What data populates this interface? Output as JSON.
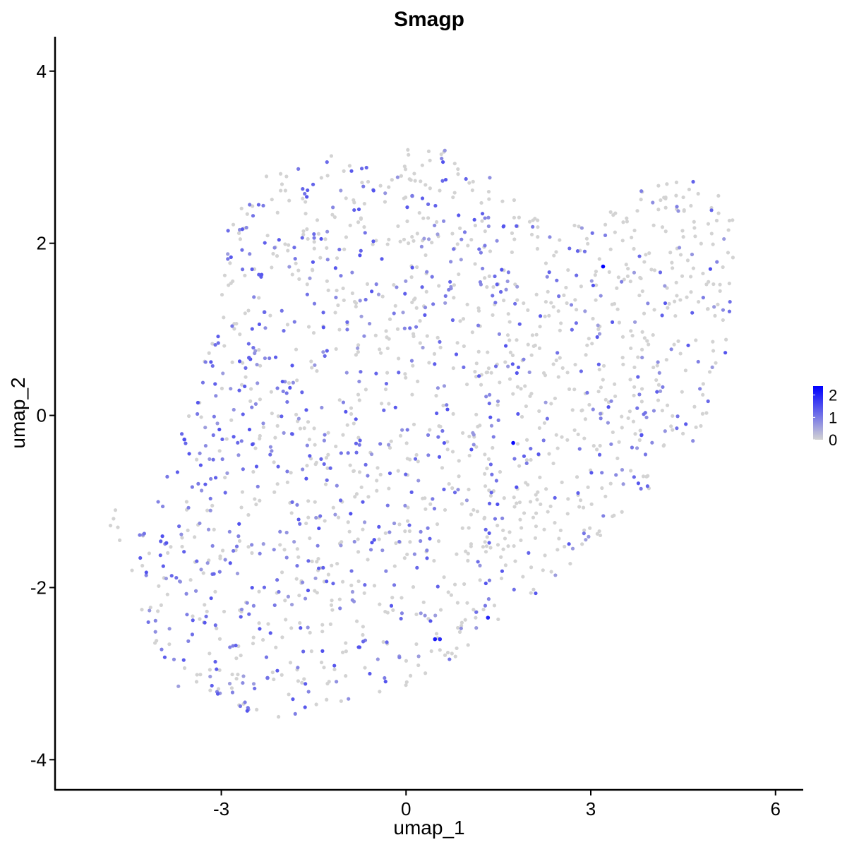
{
  "chart_data": {
    "type": "scatter",
    "title": "Smagp",
    "xlabel": "umap_1",
    "ylabel": "umap_2",
    "xlim": [
      -5.7,
      6.45
    ],
    "ylim": [
      -4.35,
      4.4
    ],
    "xticks": [
      -3,
      0,
      3,
      6
    ],
    "xtick_labels": [
      "-3",
      "0",
      "3",
      "6"
    ],
    "yticks": [
      4,
      2,
      0,
      -2,
      -4
    ],
    "ytick_labels": [
      "4",
      "2",
      "0",
      "-2",
      "-4"
    ],
    "grid": false,
    "legend": {
      "placement": "right",
      "type": "colorbar",
      "range": [
        0,
        2.4
      ],
      "ticks": [
        2,
        1,
        0
      ],
      "tick_labels": [
        "2",
        "1",
        "0"
      ],
      "low_color": "#D3D3D3",
      "high_color": "#0000FF"
    },
    "highlight_points": [
      {
        "x": 3.2,
        "y": 1.73,
        "value": 2.4
      },
      {
        "x": 1.74,
        "y": -0.32,
        "value": 2.3
      },
      {
        "x": 1.33,
        "y": -2.35,
        "value": 2.0
      },
      {
        "x": 0.47,
        "y": -2.6,
        "value": 2.1
      },
      {
        "x": 0.55,
        "y": -2.6,
        "value": 1.9
      },
      {
        "x": -3.6,
        "y": -0.28,
        "value": 1.5
      },
      {
        "x": -2.55,
        "y": 0.67,
        "value": 1.3
      },
      {
        "x": -2.3,
        "y": 1.2,
        "value": 1.2
      },
      {
        "x": -2.25,
        "y": -3.05,
        "value": 1.1
      },
      {
        "x": 0.1,
        "y": 2.55,
        "value": 1.0
      }
    ],
    "point_generation": {
      "n_points": 1700,
      "seed": 7,
      "region_polygon": [
        [
          -2.1,
          2.95
        ],
        [
          -1.0,
          3.05
        ],
        [
          0.0,
          3.1
        ],
        [
          0.5,
          3.15
        ],
        [
          1.2,
          2.95
        ],
        [
          2.4,
          2.1
        ],
        [
          3.5,
          2.45
        ],
        [
          4.5,
          3.05
        ],
        [
          5.3,
          2.45
        ],
        [
          5.4,
          1.95
        ],
        [
          5.2,
          0.6
        ],
        [
          4.8,
          -0.25
        ],
        [
          3.6,
          -1.1
        ],
        [
          2.4,
          -1.9
        ],
        [
          0.3,
          -3.1
        ],
        [
          -2.2,
          -3.55
        ],
        [
          -3.7,
          -3.15
        ],
        [
          -4.35,
          -2.3
        ],
        [
          -4.35,
          -1.3
        ],
        [
          -3.4,
          0.2
        ],
        [
          -3.1,
          1.2
        ],
        [
          -2.95,
          2.2
        ]
      ],
      "outlier_points": [
        {
          "x": -4.8,
          "y": -1.28,
          "value": 0
        },
        {
          "x": -4.75,
          "y": -1.2,
          "value": 0
        },
        {
          "x": -4.72,
          "y": -1.1,
          "value": 0
        },
        {
          "x": -4.68,
          "y": -1.3,
          "value": 0
        },
        {
          "x": -4.65,
          "y": -1.45,
          "value": 0
        },
        {
          "x": -4.45,
          "y": -1.8,
          "value": 0
        }
      ],
      "expressing_fraction": 0.45,
      "gradient_low_to_high_x": true
    }
  }
}
